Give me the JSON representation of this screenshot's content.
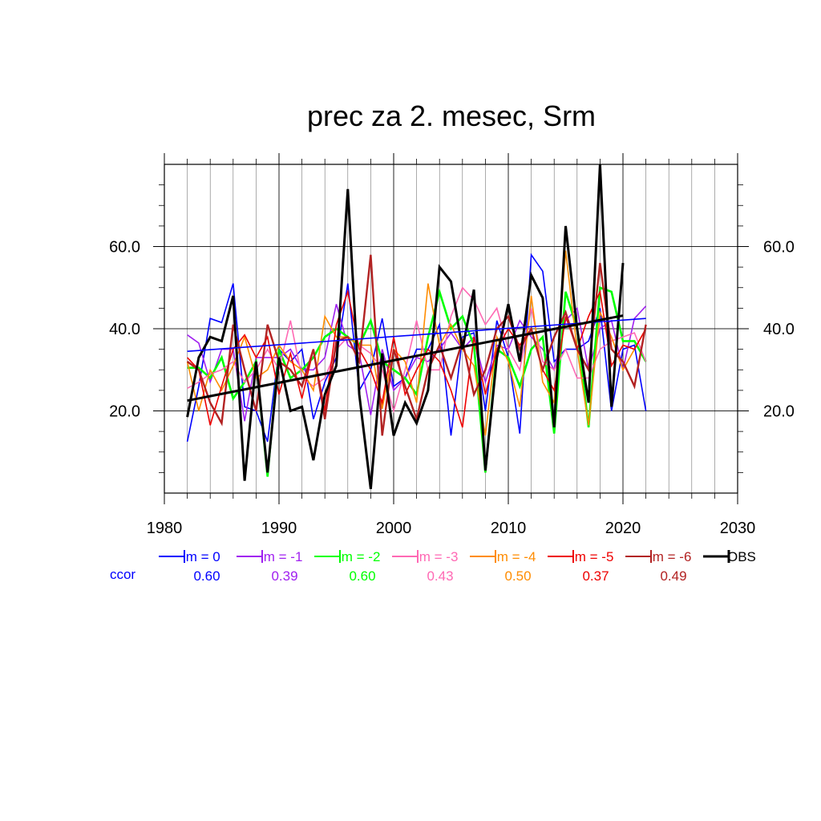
{
  "chart_data": {
    "type": "line",
    "title": "prec za 2. mesec, Srm",
    "xlabel": "",
    "ylabel": "",
    "xlim": [
      1980,
      2030
    ],
    "ylim": [
      0,
      80
    ],
    "x_ticks": [
      "1980",
      "1990",
      "2000",
      "2010",
      "2020",
      "2030"
    ],
    "y_ticks": [
      "20.0",
      "40.0",
      "60.0"
    ],
    "grid": true,
    "ccor_label": "ccor",
    "years": [
      1982,
      1983,
      1984,
      1985,
      1986,
      1987,
      1988,
      1989,
      1990,
      1991,
      1992,
      1993,
      1994,
      1995,
      1996,
      1997,
      1998,
      1999,
      2000,
      2001,
      2002,
      2003,
      2004,
      2005,
      2006,
      2007,
      2008,
      2009,
      2010,
      2011,
      2012,
      2013,
      2014,
      2015,
      2016,
      2017,
      2018,
      2019,
      2020,
      2021,
      2022
    ],
    "series": [
      {
        "name": "lm = 0",
        "color": "#0000ff",
        "ccor": "0.60",
        "width": 1.6,
        "values": [
          12.5,
          26,
          42.5,
          41.5,
          51,
          21,
          20,
          12.5,
          35,
          32,
          35,
          18,
          27,
          33,
          51,
          25,
          30,
          42.5,
          26,
          28,
          35,
          35,
          41,
          14,
          38,
          39,
          20,
          42,
          33,
          14.5,
          58,
          54,
          32,
          35,
          35,
          37,
          45,
          20,
          35,
          36,
          20
        ]
      },
      {
        "name": "lm = -1",
        "color": "#a020f0",
        "ccor": "0.39",
        "width": 1.6,
        "values": [
          38.5,
          36.5,
          27,
          35,
          35,
          17.5,
          33,
          33,
          33,
          35,
          30,
          30,
          33,
          46,
          36,
          34,
          19,
          35,
          25,
          28,
          33,
          32,
          35,
          39,
          35,
          38,
          27,
          36,
          35,
          42,
          38,
          35,
          30,
          42,
          45,
          30,
          40,
          42,
          30,
          42.5,
          45.5
        ]
      },
      {
        "name": "lm = -2",
        "color": "#00ff00",
        "ccor": "0.60",
        "width": 2.6,
        "values": [
          30.5,
          30.5,
          28,
          33,
          23,
          27,
          32,
          4,
          35,
          28,
          30,
          33,
          38,
          40,
          38,
          36,
          42,
          32,
          30,
          28,
          24,
          38,
          49,
          40,
          43,
          36,
          5,
          35,
          33,
          26,
          35,
          38,
          14.5,
          49,
          40,
          16,
          50,
          49,
          37,
          37,
          32
        ]
      },
      {
        "name": "lm = -3",
        "color": "#ff69b4",
        "ccor": "0.43",
        "width": 1.6,
        "values": [
          25.5,
          27,
          29,
          30,
          32,
          27,
          30,
          35,
          30,
          42,
          28,
          26,
          28,
          35,
          38,
          36,
          34,
          30,
          20,
          30,
          42,
          30,
          30,
          43,
          50,
          47,
          41,
          45,
          35,
          30,
          45,
          32,
          30,
          35,
          28,
          28,
          35,
          37,
          38,
          39,
          32
        ]
      },
      {
        "name": "lm = -4",
        "color": "#ff8c00",
        "ccor": "0.50",
        "width": 1.6,
        "values": [
          32,
          20,
          30,
          25,
          31,
          38,
          28,
          30,
          36,
          32,
          30,
          25,
          43,
          38,
          38,
          36,
          36,
          20.5,
          35,
          32,
          22,
          51,
          36,
          41,
          35,
          31,
          14,
          38,
          32,
          21,
          48,
          27,
          22,
          59,
          35,
          16.5,
          44,
          38,
          30,
          35,
          40
        ]
      },
      {
        "name": "lm = -5",
        "color": "#ee0000",
        "ccor": "0.37",
        "width": 1.6,
        "values": [
          33,
          30,
          16.5,
          26,
          35,
          38.5,
          33,
          38,
          24,
          34,
          23,
          35,
          20,
          41,
          49,
          35,
          30,
          22,
          38,
          24,
          30,
          35,
          32,
          25,
          16,
          38,
          24,
          35,
          40,
          36,
          40,
          30,
          25,
          43,
          35,
          43,
          49,
          31,
          36,
          35,
          40
        ]
      },
      {
        "name": "lm = -6",
        "color": "#b22222",
        "ccor": "0.49",
        "width": 2.4,
        "values": [
          32,
          30,
          22,
          17,
          41,
          30,
          20,
          41,
          32,
          30,
          26,
          35,
          18,
          37,
          38,
          32,
          58,
          14,
          35,
          26,
          18,
          30,
          36,
          28,
          37,
          24,
          30,
          40,
          43,
          35,
          40,
          30,
          38,
          44,
          35,
          30,
          56,
          35,
          32,
          26,
          41
        ]
      },
      {
        "name": "OBS",
        "color": "#000000",
        "ccor": "",
        "width": 3,
        "values": [
          18.5,
          33,
          38,
          37,
          48,
          3,
          32,
          5,
          33,
          20,
          21,
          8,
          24,
          31,
          74,
          24,
          1,
          34,
          14,
          22,
          17,
          25,
          55,
          51.5,
          35,
          49.5,
          5.5,
          33,
          46,
          32,
          53,
          47.5,
          16,
          65,
          40,
          22,
          80,
          21,
          56,
          null,
          null
        ]
      }
    ],
    "trend_lines": [
      {
        "name": "lm = 0 trend",
        "color": "#0000ff",
        "x": [
          1982,
          2022
        ],
        "y": [
          34.5,
          42.5
        ]
      },
      {
        "name": "OBS trend",
        "color": "#000000",
        "x": [
          1982,
          2020
        ],
        "y": [
          22.5,
          43.2
        ]
      }
    ]
  }
}
